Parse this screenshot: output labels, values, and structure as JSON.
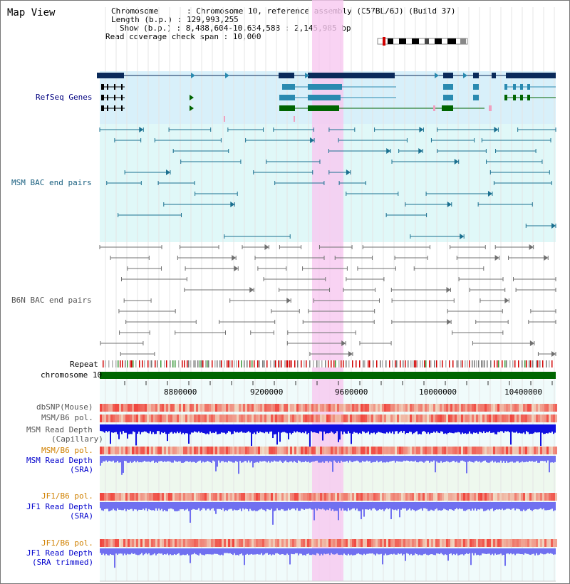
{
  "title": "Map View",
  "header": {
    "chromosome": "Chromosome      : Chromosome 10, reference assembly (C57BL/6J) (Build 37)",
    "length": "Length (b.p.) : 129,993,255",
    "show": "Show (b.p.) : 8,488,604-10,634,588 : 2,145,985 bp",
    "coverage": "Read coverage check span : 10,000"
  },
  "track_labels": {
    "refseq": "RefSeq Genes",
    "msm_bac": "MSM BAC end pairs",
    "b6n_bac": "B6N BAC end pairs",
    "repeat": "Repeat",
    "chromosome": "chromosome 10",
    "dbsnp": "dbSNP(Mouse)",
    "msm_b6_pol_1": "MSM/B6 pol.",
    "msm_read_depth_cap_1": "MSM Read Depth",
    "msm_read_depth_cap_2": "(Capillary)",
    "msm_b6_pol_2": "MSM/B6 pol.",
    "msm_read_depth_sra_1": "MSM Read Depth",
    "msm_read_depth_sra_2": "(SRA)",
    "jf1_b6_pol_1": "JF1/B6 pol.",
    "jf1_read_depth_sra_1": "JF1 Read Depth",
    "jf1_read_depth_sra_2": "(SRA)",
    "jf1_b6_pol_2": "JF1/B6 pol.",
    "jf1_read_depth_trim_1": "JF1 Read Depth",
    "jf1_read_depth_trim_2": "(SRA trimmed)"
  },
  "axis_ticks": [
    "8800000",
    "9200000",
    "9600000",
    "10000000",
    "10400000"
  ],
  "colors": {
    "highlight": "#f8c8f0",
    "refseq_bg": "#d8f0fa",
    "msm_bg": "#e0f8f8",
    "gene_dark": "#0a2a5a",
    "gene_teal": "#2a8ab0",
    "gene_green": "#006400",
    "msm_line": "#1a7090",
    "b6n_line": "#707070",
    "chrom_bar": "#006600",
    "depth_blue": "#1010e0",
    "depth_light": "#7070f0"
  }
}
